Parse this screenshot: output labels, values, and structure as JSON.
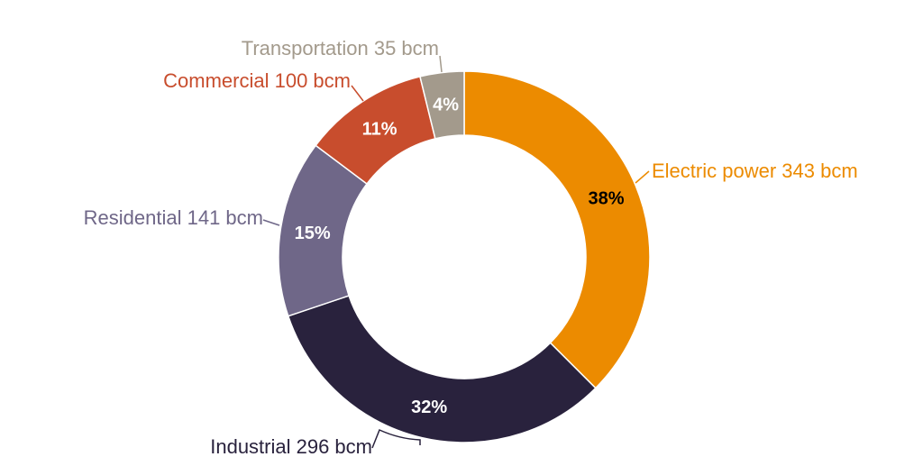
{
  "chart_data": {
    "type": "pie",
    "donut": true,
    "unit": "bcm",
    "start": "top, clockwise",
    "slices": [
      {
        "name": "Electric power",
        "value": 343,
        "label": "Electric power 343 bcm",
        "pct_label": "38%",
        "color": "#EC8B00",
        "pct_color": "#000000"
      },
      {
        "name": "Industrial",
        "value": 296,
        "label": "Industrial 296 bcm",
        "pct_label": "32%",
        "color": "#29223D",
        "pct_color": "#FFFFFF"
      },
      {
        "name": "Residential",
        "value": 141,
        "label": "Residential 141 bcm",
        "pct_label": "15%",
        "color": "#6F6788",
        "pct_color": "#FFFFFF"
      },
      {
        "name": "Commercial",
        "value": 100,
        "label": "Commercial 100 bcm",
        "pct_label": "11%",
        "color": "#C84D2D",
        "pct_color": "#FFFFFF"
      },
      {
        "name": "Transportation",
        "value": 35,
        "label": "Transportation 35 bcm",
        "pct_label": "4%",
        "color": "#A39A8C",
        "pct_color": "#FFFFFF"
      }
    ]
  }
}
